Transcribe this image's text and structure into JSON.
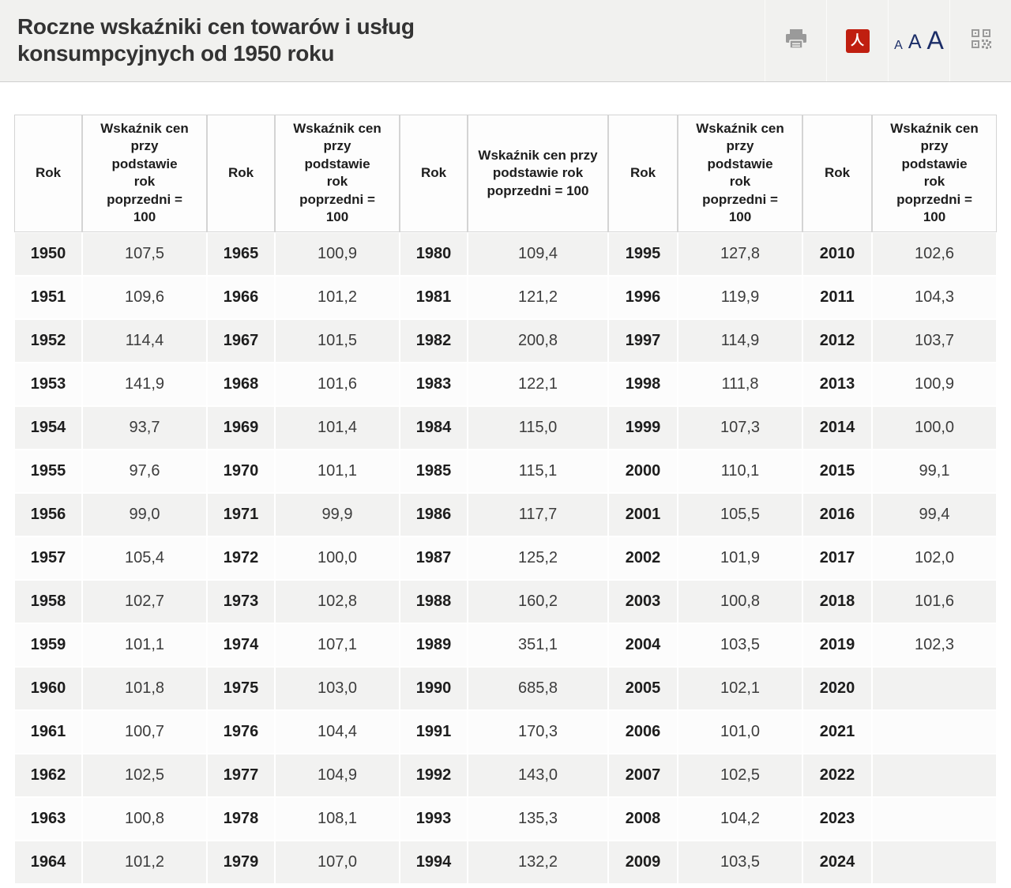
{
  "header": {
    "title": "Roczne wskaźniki cen towarów i usług konsumpcyjnych od 1950 roku",
    "font_sizes": [
      "A",
      "A",
      "A"
    ],
    "tools": {
      "print": "printer-icon",
      "pdf": "pdf-icon",
      "font_size": "font-size-controls",
      "qr": "qr-code-icon"
    }
  },
  "colors": {
    "topbar_bg": "#f1f1ef",
    "pdf_red": "#c01f10",
    "font_size_navy": "#1c2e68",
    "icon_gray": "#9a9a9a",
    "stripe_gray": "#f2f2f1"
  },
  "table": {
    "year_header": "Rok",
    "index_header": "Wskaźnik cen przy podstawie rok poprzedni = 100",
    "rows": [
      [
        "1950",
        "107,5",
        "1965",
        "100,9",
        "1980",
        "109,4",
        "1995",
        "127,8",
        "2010",
        "102,6"
      ],
      [
        "1951",
        "109,6",
        "1966",
        "101,2",
        "1981",
        "121,2",
        "1996",
        "119,9",
        "2011",
        "104,3"
      ],
      [
        "1952",
        "114,4",
        "1967",
        "101,5",
        "1982",
        "200,8",
        "1997",
        "114,9",
        "2012",
        "103,7"
      ],
      [
        "1953",
        "141,9",
        "1968",
        "101,6",
        "1983",
        "122,1",
        "1998",
        "111,8",
        "2013",
        "100,9"
      ],
      [
        "1954",
        "93,7",
        "1969",
        "101,4",
        "1984",
        "115,0",
        "1999",
        "107,3",
        "2014",
        "100,0"
      ],
      [
        "1955",
        "97,6",
        "1970",
        "101,1",
        "1985",
        "115,1",
        "2000",
        "110,1",
        "2015",
        "99,1"
      ],
      [
        "1956",
        "99,0",
        "1971",
        "99,9",
        "1986",
        "117,7",
        "2001",
        "105,5",
        "2016",
        "99,4"
      ],
      [
        "1957",
        "105,4",
        "1972",
        "100,0",
        "1987",
        "125,2",
        "2002",
        "101,9",
        "2017",
        "102,0"
      ],
      [
        "1958",
        "102,7",
        "1973",
        "102,8",
        "1988",
        "160,2",
        "2003",
        "100,8",
        "2018",
        "101,6"
      ],
      [
        "1959",
        "101,1",
        "1974",
        "107,1",
        "1989",
        "351,1",
        "2004",
        "103,5",
        "2019",
        "102,3"
      ],
      [
        "1960",
        "101,8",
        "1975",
        "103,0",
        "1990",
        "685,8",
        "2005",
        "102,1",
        "2020",
        ""
      ],
      [
        "1961",
        "100,7",
        "1976",
        "104,4",
        "1991",
        "170,3",
        "2006",
        "101,0",
        "2021",
        ""
      ],
      [
        "1962",
        "102,5",
        "1977",
        "104,9",
        "1992",
        "143,0",
        "2007",
        "102,5",
        "2022",
        ""
      ],
      [
        "1963",
        "100,8",
        "1978",
        "108,1",
        "1993",
        "135,3",
        "2008",
        "104,2",
        "2023",
        ""
      ],
      [
        "1964",
        "101,2",
        "1979",
        "107,0",
        "1994",
        "132,2",
        "2009",
        "103,5",
        "2024",
        ""
      ]
    ]
  }
}
